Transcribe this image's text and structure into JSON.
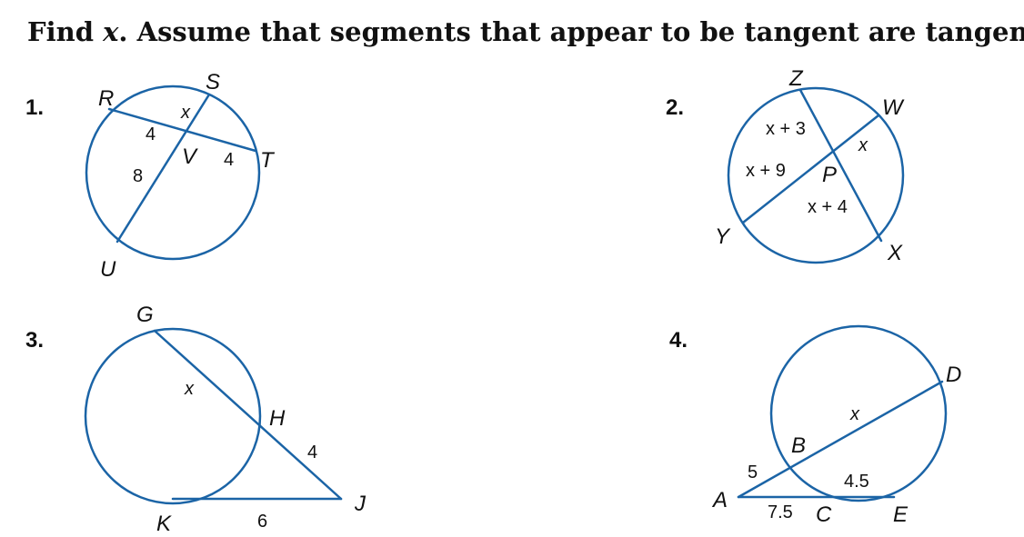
{
  "instructions": {
    "before_var": "Find ",
    "var": "x",
    "after_var": ". Assume that segments that appear to be tangent are tangent."
  },
  "problems": [
    {
      "number": "1.",
      "points": [
        "R",
        "S",
        "T",
        "U",
        "V"
      ],
      "segments": [
        "x",
        "4",
        "4",
        "8"
      ]
    },
    {
      "number": "2.",
      "points": [
        "Z",
        "W",
        "P",
        "Y",
        "X"
      ],
      "segments": [
        "x + 3",
        "x",
        "x + 9",
        "x + 4"
      ]
    },
    {
      "number": "3.",
      "points": [
        "G",
        "H",
        "J",
        "K"
      ],
      "segments": [
        "x",
        "4",
        "6"
      ]
    },
    {
      "number": "4.",
      "points": [
        "D",
        "B",
        "A",
        "C",
        "E"
      ],
      "segments": [
        "x",
        "5",
        "4.5",
        "7.5"
      ]
    }
  ],
  "colors": {
    "figure_stroke": "#1b64a6",
    "text": "#111111"
  }
}
